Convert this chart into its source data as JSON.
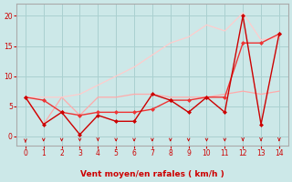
{
  "xlabel": "Vent moyen/en rafales ( km/h )",
  "bg_color": "#cce8e8",
  "grid_color": "#aad0d0",
  "xlabel_color": "#cc0000",
  "tick_color": "#cc0000",
  "ylim": [
    -1.5,
    22
  ],
  "xlim": [
    -0.5,
    14.5
  ],
  "yticks": [
    0,
    5,
    10,
    15,
    20
  ],
  "xticks": [
    0,
    1,
    2,
    3,
    4,
    5,
    6,
    7,
    8,
    9,
    10,
    11,
    12,
    13,
    14
  ],
  "line_flat_x": [
    0,
    1,
    2,
    3,
    4,
    5,
    6,
    7,
    8,
    9,
    10,
    11,
    12,
    13,
    14
  ],
  "line_flat_y": [
    6.5,
    2.0,
    6.5,
    3.5,
    6.5,
    6.5,
    7.0,
    7.0,
    6.5,
    6.5,
    6.5,
    7.0,
    7.5,
    7.0,
    7.5
  ],
  "line_flat_c": "#ffaaaa",
  "line_rise_x": [
    0,
    1,
    2,
    3,
    4,
    5,
    6,
    7,
    8,
    9,
    10,
    11,
    12,
    13,
    14
  ],
  "line_rise_y": [
    6.5,
    6.5,
    6.5,
    7.0,
    8.5,
    10.0,
    11.5,
    13.5,
    15.5,
    16.5,
    18.5,
    17.5,
    20.5,
    16.0,
    16.5
  ],
  "line_rise_c": "#ffcccc",
  "line_dark_a_x": [
    0,
    1,
    2,
    3,
    4,
    5,
    6,
    7,
    8,
    9,
    10,
    11,
    12,
    13,
    14
  ],
  "line_dark_a_y": [
    6.5,
    6.0,
    4.0,
    3.5,
    4.0,
    4.0,
    4.0,
    4.5,
    6.0,
    6.0,
    6.5,
    6.5,
    15.5,
    15.5,
    17.0
  ],
  "line_dark_a_c": "#ee3333",
  "line_dark_b_x": [
    0,
    1,
    2,
    3,
    4,
    5,
    6,
    7,
    8,
    9,
    10,
    11,
    12,
    13,
    14
  ],
  "line_dark_b_y": [
    6.5,
    2.0,
    4.0,
    0.3,
    3.5,
    2.5,
    2.5,
    7.0,
    6.0,
    4.0,
    6.5,
    4.0,
    20.0,
    2.0,
    17.0
  ],
  "line_dark_b_c": "#cc0000",
  "arrow_angles_deg": [
    180,
    270,
    270,
    270,
    225,
    270,
    270,
    270,
    270,
    270,
    270,
    270,
    225,
    225,
    225,
    270,
    315,
    315,
    315,
    315,
    315,
    315
  ]
}
